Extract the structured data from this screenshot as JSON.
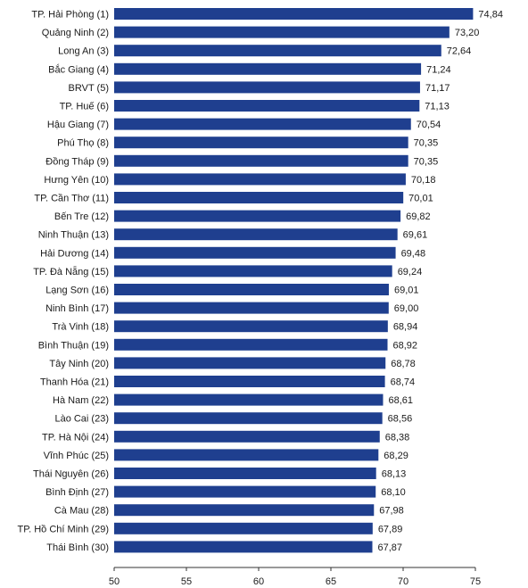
{
  "colors": {
    "bar": "#1f3f8f",
    "text": "#1a1a1a",
    "axis": "#333333"
  },
  "chart_data": {
    "type": "bar",
    "orientation": "horizontal",
    "title": "",
    "xlabel": "",
    "ylabel": "",
    "xlim": [
      50,
      75
    ],
    "x_ticks": [
      "50",
      "55",
      "60",
      "65",
      "70",
      "75"
    ],
    "grid": false,
    "categories": [
      "TP. Hải Phòng (1)",
      "Quảng Ninh (2)",
      "Long An (3)",
      "Bắc Giang (4)",
      "BRVT (5)",
      "TP. Huế (6)",
      "Hậu Giang (7)",
      "Phú Thọ (8)",
      "Đồng Tháp (9)",
      "Hưng Yên (10)",
      "TP. Cần Thơ (11)",
      "Bến Tre (12)",
      "Ninh Thuận (13)",
      "Hải Dương (14)",
      "TP. Đà Nẵng (15)",
      "Lạng Sơn (16)",
      "Ninh Bình (17)",
      "Trà Vinh (18)",
      "Bình Thuận (19)",
      "Tây Ninh (20)",
      "Thanh Hóa (21)",
      "Hà Nam (22)",
      "Lào Cai (23)",
      "TP. Hà Nội (24)",
      "Vĩnh Phúc (25)",
      "Thái Nguyên (26)",
      "Bình Định (27)",
      "Cà Mau (28)",
      "TP. Hồ Chí Minh (29)",
      "Thái Bình (30)"
    ],
    "values": [
      74.84,
      73.2,
      72.64,
      71.24,
      71.17,
      71.13,
      70.54,
      70.35,
      70.35,
      70.18,
      70.01,
      69.82,
      69.61,
      69.48,
      69.24,
      69.01,
      69.0,
      68.94,
      68.92,
      68.78,
      68.74,
      68.61,
      68.56,
      68.38,
      68.29,
      68.13,
      68.1,
      67.98,
      67.89,
      67.87
    ],
    "value_labels": [
      "74,84",
      "73,20",
      "72,64",
      "71,24",
      "71,17",
      "71,13",
      "70,54",
      "70,35",
      "70,35",
      "70,18",
      "70,01",
      "69,82",
      "69,61",
      "69,48",
      "69,24",
      "69,01",
      "69,00",
      "68,94",
      "68,92",
      "68,78",
      "68,74",
      "68,61",
      "68,56",
      "68,38",
      "68,29",
      "68,13",
      "68,10",
      "67,98",
      "67,89",
      "67,87"
    ]
  }
}
